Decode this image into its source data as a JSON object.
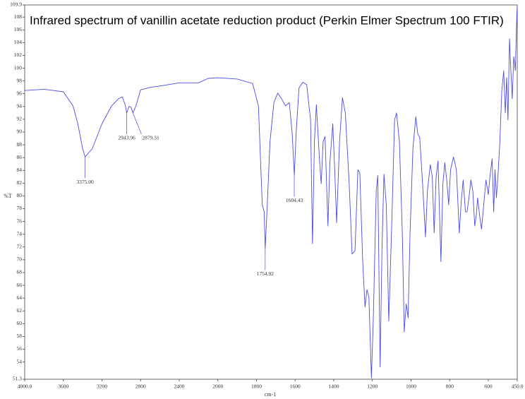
{
  "chart_data": {
    "type": "line",
    "title": "Infrared spectrum of vanillin acetate reduction product (Perkin Elmer Spectrum 100 FTIR)",
    "y_label": "%T",
    "x_label": "cm-1",
    "color": "#4b4be6",
    "x_scale_break": 2000,
    "xlim": [
      4000,
      450
    ],
    "xticks": [
      {
        "value": 4000,
        "label": "4000.0"
      },
      3600,
      3200,
      2800,
      2400,
      2000,
      1800,
      1600,
      1400,
      1200,
      1000,
      800,
      600,
      {
        "value": 450,
        "label": "450.0"
      }
    ],
    "ylim": [
      51.3,
      109.9
    ],
    "yticks": [
      51.3,
      54,
      56,
      58,
      60,
      62,
      64,
      66,
      68,
      70,
      72,
      74,
      76,
      78,
      80,
      82,
      84,
      86,
      88,
      90,
      92,
      94,
      96,
      98,
      100,
      102,
      104,
      106,
      108,
      109.9
    ],
    "x": [
      4000,
      3800,
      3700,
      3600,
      3500,
      3450,
      3400,
      3375,
      3300,
      3200,
      3100,
      3030,
      2990,
      2960,
      2944,
      2920,
      2900,
      2879,
      2850,
      2800,
      2700,
      2600,
      2400,
      2200,
      2100,
      2000,
      1900,
      1820,
      1790,
      1770,
      1760,
      1755,
      1745,
      1730,
      1710,
      1690,
      1670,
      1650,
      1630,
      1615,
      1604,
      1595,
      1580,
      1560,
      1540,
      1520,
      1510,
      1500,
      1490,
      1475,
      1465,
      1455,
      1445,
      1430,
      1420,
      1405,
      1395,
      1385,
      1370,
      1355,
      1340,
      1320,
      1305,
      1290,
      1275,
      1265,
      1250,
      1238,
      1228,
      1218,
      1205,
      1195,
      1180,
      1172,
      1160,
      1150,
      1140,
      1128,
      1115,
      1100,
      1085,
      1075,
      1060,
      1045,
      1035,
      1025,
      1015,
      1005,
      990,
      975,
      965,
      955,
      940,
      925,
      915,
      900,
      890,
      880,
      870,
      860,
      845,
      835,
      825,
      815,
      805,
      795,
      780,
      765,
      750,
      740,
      730,
      718,
      710,
      700,
      690,
      680,
      670,
      662,
      655,
      645,
      635,
      622,
      612,
      600,
      590,
      580,
      572,
      565,
      558,
      550,
      540,
      530,
      520,
      512,
      505,
      498,
      490,
      483,
      476,
      468,
      460,
      452,
      450
    ],
    "values": [
      96.5,
      96.7,
      96.5,
      96.3,
      94.1,
      91.3,
      87.4,
      86.1,
      87.4,
      91.3,
      94.1,
      95.2,
      95.5,
      94.3,
      93.0,
      94,
      93.9,
      93.0,
      94,
      96.6,
      97.0,
      97.2,
      97.7,
      97.7,
      98.4,
      98.5,
      98.3,
      97.6,
      94.1,
      78.6,
      77.5,
      71.7,
      78,
      88.5,
      94.6,
      96.1,
      95.2,
      94.1,
      94.6,
      89.7,
      83.2,
      89.7,
      96.9,
      97.8,
      97.4,
      91.9,
      72.5,
      88.5,
      94.3,
      86.3,
      81.9,
      88.5,
      89.3,
      75.3,
      85.2,
      91.3,
      84.1,
      75.8,
      88.5,
      95.4,
      93,
      81.9,
      70.9,
      71.4,
      84.1,
      83.6,
      69.7,
      62.6,
      65.3,
      64.2,
      51.5,
      60.9,
      80.8,
      83.2,
      53.2,
      72,
      83.4,
      78.6,
      60.4,
      75.3,
      91.9,
      93,
      88.5,
      74.2,
      58.7,
      63.1,
      60.9,
      74.2,
      87.5,
      92.4,
      89.7,
      89.2,
      81.9,
      73.6,
      80.8,
      84.9,
      83,
      74.2,
      83,
      85.5,
      69.7,
      81.9,
      85.2,
      82.5,
      78.6,
      84.1,
      86.1,
      84.1,
      74.2,
      79.1,
      82.5,
      77.5,
      77.5,
      79.7,
      82.5,
      80.8,
      75.3,
      77,
      79.7,
      77,
      74.8,
      79.1,
      82.5,
      80.2,
      83.4,
      85.8,
      77.5,
      84.1,
      79.7,
      83,
      88.5,
      96.4,
      99.6,
      93,
      98.5,
      91.9,
      104.6,
      99.6,
      95.2,
      101.8,
      99.6,
      108.5,
      109.6
    ],
    "annotations": [
      {
        "text": "3375.00",
        "x": 3375.0,
        "y": 86.1
      },
      {
        "text": "2943.96",
        "x": 2943.96,
        "y": 93.0
      },
      {
        "text": "2879.31",
        "x": 2879.31,
        "y": 93.0
      },
      {
        "text": "1754.92",
        "x": 1754.92,
        "y": 71.7
      },
      {
        "text": "1604.43",
        "x": 1604.43,
        "y": 83.2
      }
    ]
  }
}
